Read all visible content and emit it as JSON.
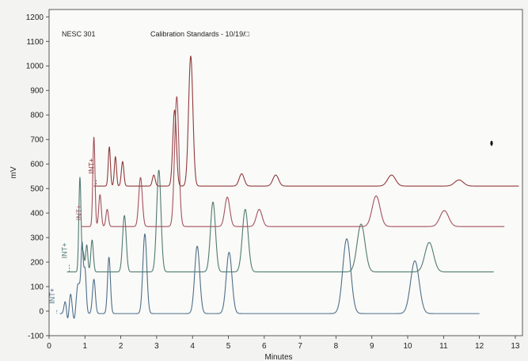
{
  "chart_data": {
    "type": "line",
    "header_left": "NESC 301",
    "header_right": "Calibration Standards - 10/19/□",
    "xlabel": "Minutes",
    "ylabel": "mV",
    "xlim": [
      0,
      13.2
    ],
    "ylim": [
      -100,
      1230
    ],
    "xticks": [
      0,
      1,
      2,
      3,
      4,
      5,
      6,
      7,
      8,
      9,
      10,
      11,
      12,
      13
    ],
    "yticks": [
      -100,
      0,
      100,
      200,
      300,
      400,
      500,
      600,
      700,
      800,
      900,
      1000,
      1100,
      1200
    ],
    "grid": false,
    "marker_label": "INT+",
    "series": [
      {
        "color": "#4d6f8a",
        "start": 0.3,
        "end": 12.0,
        "baseline": -10,
        "marker": {
          "x": 0.15,
          "y": 30
        },
        "peaks": [
          {
            "t": 0.45,
            "h": 50,
            "w": 0.035
          },
          {
            "t": 0.52,
            "h": -30,
            "w": 0.03
          },
          {
            "t": 0.6,
            "h": 80,
            "w": 0.035
          },
          {
            "t": 0.7,
            "h": -25,
            "w": 0.03
          },
          {
            "t": 0.8,
            "h": 110,
            "w": 0.04
          },
          {
            "t": 0.86,
            "h": 60,
            "w": 0.03
          },
          {
            "t": 0.92,
            "h": 270,
            "w": 0.03
          },
          {
            "t": 1.0,
            "h": 180,
            "w": 0.035
          },
          {
            "t": 1.25,
            "h": 140,
            "w": 0.04
          },
          {
            "t": 1.67,
            "h": 230,
            "w": 0.04
          },
          {
            "t": 2.67,
            "h": 325,
            "w": 0.055
          },
          {
            "t": 4.13,
            "h": 275,
            "w": 0.07
          },
          {
            "t": 5.02,
            "h": 250,
            "w": 0.08
          },
          {
            "t": 8.3,
            "h": 305,
            "w": 0.11
          },
          {
            "t": 10.2,
            "h": 215,
            "w": 0.12
          }
        ]
      },
      {
        "color": "#4f7a72",
        "start": 0.5,
        "end": 12.4,
        "baseline": 160,
        "marker": {
          "x": 0.5,
          "y": 215
        },
        "peaks": [
          {
            "t": 0.86,
            "h": 385,
            "w": 0.03
          },
          {
            "t": 0.95,
            "h": 80,
            "w": 0.03
          },
          {
            "t": 1.05,
            "h": 110,
            "w": 0.03
          },
          {
            "t": 1.2,
            "h": 130,
            "w": 0.035
          },
          {
            "t": 2.1,
            "h": 230,
            "w": 0.05
          },
          {
            "t": 3.06,
            "h": 415,
            "w": 0.06
          },
          {
            "t": 4.57,
            "h": 285,
            "w": 0.07
          },
          {
            "t": 5.47,
            "h": 255,
            "w": 0.08
          },
          {
            "t": 8.7,
            "h": 195,
            "w": 0.11
          },
          {
            "t": 10.6,
            "h": 120,
            "w": 0.12
          }
        ]
      },
      {
        "color": "#a3515c",
        "start": 0.9,
        "end": 12.7,
        "baseline": 345,
        "marker": {
          "x": 0.9,
          "y": 370
        },
        "peaks": [
          {
            "t": 1.25,
            "h": 365,
            "w": 0.03
          },
          {
            "t": 1.42,
            "h": 130,
            "w": 0.035
          },
          {
            "t": 1.62,
            "h": 70,
            "w": 0.035
          },
          {
            "t": 2.55,
            "h": 200,
            "w": 0.05
          },
          {
            "t": 3.56,
            "h": 530,
            "w": 0.06
          },
          {
            "t": 4.97,
            "h": 120,
            "w": 0.07
          },
          {
            "t": 5.86,
            "h": 70,
            "w": 0.08
          },
          {
            "t": 9.12,
            "h": 125,
            "w": 0.11
          },
          {
            "t": 11.02,
            "h": 65,
            "w": 0.12
          }
        ]
      },
      {
        "color": "#8f3a3a",
        "start": 1.25,
        "end": 13.1,
        "baseline": 510,
        "marker": {
          "x": 1.25,
          "y": 560
        },
        "peaks": [
          {
            "t": 1.68,
            "h": 160,
            "w": 0.03
          },
          {
            "t": 1.85,
            "h": 120,
            "w": 0.03
          },
          {
            "t": 2.05,
            "h": 100,
            "w": 0.035
          },
          {
            "t": 2.92,
            "h": 45,
            "w": 0.04
          },
          {
            "t": 3.5,
            "h": 310,
            "w": 0.05
          },
          {
            "t": 3.95,
            "h": 530,
            "w": 0.06
          },
          {
            "t": 5.37,
            "h": 50,
            "w": 0.07
          },
          {
            "t": 6.32,
            "h": 45,
            "w": 0.08
          },
          {
            "t": 9.55,
            "h": 45,
            "w": 0.11
          },
          {
            "t": 11.43,
            "h": 25,
            "w": 0.12
          }
        ]
      }
    ]
  }
}
